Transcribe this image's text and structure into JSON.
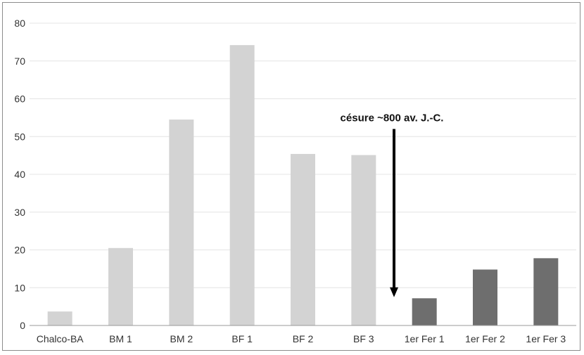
{
  "chart_data": {
    "type": "bar",
    "title": "",
    "xlabel": "",
    "ylabel": "",
    "ylim": [
      0,
      80
    ],
    "yticks": [
      0,
      10,
      20,
      30,
      40,
      50,
      60,
      70,
      80
    ],
    "grid": true,
    "categories": [
      "Chalco-BA",
      "BM 1",
      "BM 2",
      "BF 1",
      "BF 2",
      "BF 3",
      "1er Fer 1",
      "1er Fer 2",
      "1er Fer 3"
    ],
    "values": [
      3.7,
      20.5,
      54.5,
      74.2,
      45.4,
      45.1,
      7.2,
      14.8,
      17.8
    ],
    "bar_colors": [
      "#d3d3d3",
      "#d3d3d3",
      "#d3d3d3",
      "#d3d3d3",
      "#d3d3d3",
      "#d3d3d3",
      "#6e6e6e",
      "#6e6e6e",
      "#6e6e6e"
    ],
    "annotation": {
      "text": "césure ~800 av. J.-C.",
      "arrow_from_y": 52,
      "arrow_to_y": 7.5,
      "between_categories": [
        "BF 3",
        "1er Fer 1"
      ]
    }
  },
  "colors": {
    "grid": "#e4e4e4",
    "axis": "#9a9a9a",
    "arrow": "#000000"
  }
}
